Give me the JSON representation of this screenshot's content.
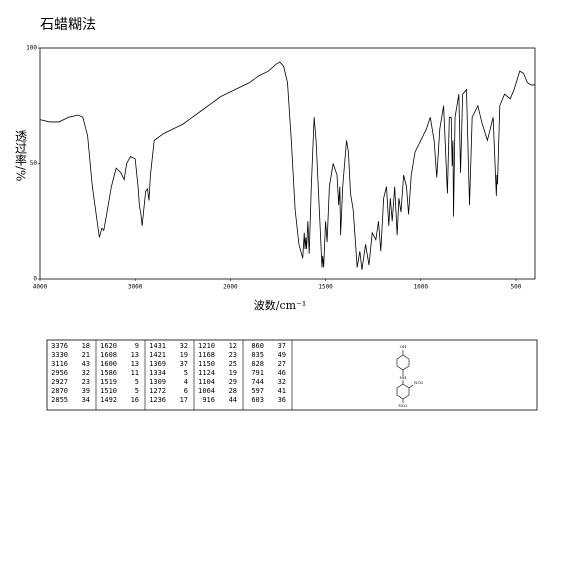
{
  "chart_data": {
    "type": "line",
    "title": "石蜡糊法",
    "ylabel": "透过率/%",
    "xlabel": "波数/cm⁻¹",
    "xlim": [
      4000,
      400
    ],
    "x_scale_break": 2000,
    "ylim": [
      0,
      100
    ],
    "xticks": [
      4000,
      3000,
      2000,
      1500,
      1000,
      500
    ],
    "yticks": [
      0,
      50,
      100
    ],
    "color": "#000000",
    "x": [
      4000,
      3900,
      3800,
      3700,
      3600,
      3550,
      3500,
      3450,
      3400,
      3376,
      3350,
      3330,
      3300,
      3250,
      3200,
      3150,
      3116,
      3090,
      3050,
      3000,
      2970,
      2956,
      2940,
      2927,
      2910,
      2890,
      2870,
      2862,
      2855,
      2840,
      2800,
      2700,
      2600,
      2500,
      2400,
      2300,
      2200,
      2100,
      2000,
      1950,
      1900,
      1850,
      1800,
      1760,
      1740,
      1720,
      1700,
      1680,
      1660,
      1640,
      1620,
      1612,
      1608,
      1604,
      1600,
      1593,
      1586,
      1575,
      1560,
      1550,
      1530,
      1519,
      1515,
      1510,
      1500,
      1492,
      1480,
      1460,
      1440,
      1431,
      1425,
      1421,
      1410,
      1390,
      1380,
      1369,
      1355,
      1334,
      1320,
      1309,
      1290,
      1272,
      1255,
      1236,
      1222,
      1210,
      1195,
      1180,
      1168,
      1160,
      1150,
      1137,
      1124,
      1115,
      1104,
      1090,
      1075,
      1064,
      1050,
      1030,
      1000,
      970,
      950,
      930,
      916,
      900,
      880,
      860,
      850,
      840,
      835,
      831,
      828,
      820,
      800,
      791,
      780,
      760,
      744,
      730,
      700,
      680,
      650,
      620,
      603,
      600,
      597,
      585,
      560,
      530,
      510,
      480,
      460,
      440,
      420,
      400
    ],
    "values": [
      69,
      68,
      68,
      70,
      71,
      70,
      62,
      40,
      25,
      18,
      22,
      21,
      28,
      40,
      48,
      46,
      43,
      50,
      53,
      52,
      40,
      32,
      28,
      23,
      30,
      38,
      39,
      36,
      34,
      45,
      60,
      63,
      65,
      67,
      70,
      73,
      76,
      79,
      81,
      83,
      85,
      88,
      90,
      93,
      94,
      92,
      85,
      60,
      30,
      15,
      9,
      20,
      13,
      18,
      13,
      25,
      11,
      40,
      70,
      60,
      25,
      5,
      10,
      5,
      25,
      16,
      40,
      50,
      45,
      32,
      40,
      19,
      40,
      60,
      55,
      37,
      30,
      5,
      12,
      4,
      15,
      6,
      20,
      17,
      25,
      12,
      35,
      40,
      23,
      35,
      25,
      40,
      19,
      35,
      29,
      45,
      40,
      28,
      45,
      55,
      60,
      65,
      70,
      60,
      44,
      65,
      75,
      37,
      70,
      70,
      49,
      60,
      27,
      70,
      80,
      46,
      80,
      82,
      32,
      70,
      75,
      68,
      60,
      70,
      36,
      45,
      41,
      75,
      80,
      78,
      82,
      90,
      89,
      85,
      84,
      84
    ]
  },
  "peak_table": {
    "rows": [
      [
        3376,
        18,
        1620,
        9,
        1431,
        32,
        1210,
        12,
        860,
        37
      ],
      [
        3330,
        21,
        1608,
        13,
        1421,
        19,
        1168,
        23,
        835,
        49
      ],
      [
        3116,
        43,
        1600,
        13,
        1369,
        37,
        1150,
        25,
        828,
        27
      ],
      [
        2956,
        32,
        1586,
        11,
        1334,
        5,
        1124,
        19,
        791,
        46
      ],
      [
        2927,
        23,
        1519,
        5,
        1309,
        4,
        1104,
        29,
        744,
        32
      ],
      [
        2870,
        39,
        1510,
        5,
        1272,
        6,
        1064,
        28,
        597,
        41
      ],
      [
        2855,
        34,
        1492,
        16,
        1236,
        17,
        916,
        44,
        603,
        36
      ]
    ]
  },
  "structure": {
    "labels": [
      "OH",
      "NH",
      "NO2",
      "NO2"
    ]
  }
}
